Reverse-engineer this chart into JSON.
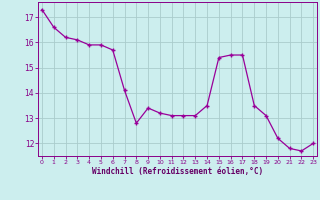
{
  "x": [
    0,
    1,
    2,
    3,
    4,
    5,
    6,
    7,
    8,
    9,
    10,
    11,
    12,
    13,
    14,
    15,
    16,
    17,
    18,
    19,
    20,
    21,
    22,
    23
  ],
  "y": [
    17.3,
    16.6,
    16.2,
    16.1,
    15.9,
    15.9,
    15.7,
    14.1,
    12.8,
    13.4,
    13.2,
    13.1,
    13.1,
    13.1,
    13.5,
    15.4,
    15.5,
    15.5,
    13.5,
    13.1,
    12.2,
    11.8,
    11.7,
    12.0
  ],
  "line_color": "#990099",
  "marker": "+",
  "bg_color": "#cceeee",
  "grid_color": "#aacccc",
  "xlabel": "Windchill (Refroidissement éolien,°C)",
  "xlabel_color": "#660066",
  "tick_color": "#880088",
  "ylim": [
    11.5,
    17.6
  ],
  "yticks": [
    12,
    13,
    14,
    15,
    16,
    17
  ],
  "xticks": [
    0,
    1,
    2,
    3,
    4,
    5,
    6,
    7,
    8,
    9,
    10,
    11,
    12,
    13,
    14,
    15,
    16,
    17,
    18,
    19,
    20,
    21,
    22,
    23
  ]
}
